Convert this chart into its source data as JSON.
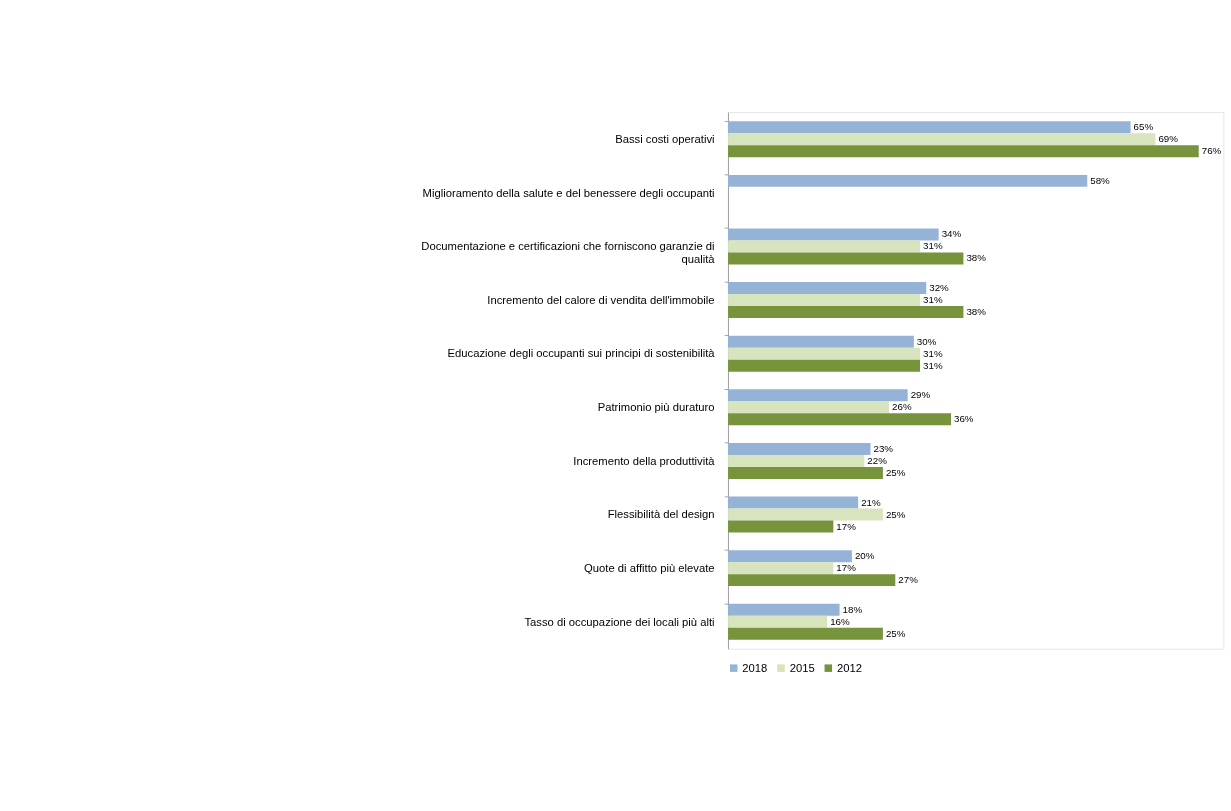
{
  "chart_data": {
    "type": "bar",
    "orientation": "horizontal",
    "legend": "bottom",
    "categories": [
      "Bassi costi operativi",
      "Miglioramento della salute e del benessere degli occupanti",
      "Documentazione e certificazioni che forniscono garanzie di qualità",
      "Incremento del calore di vendita dell'immobile",
      "Educazione degli occupanti sui principi di sostenibilità",
      "Patrimonio più duraturo",
      "Incremento della produttività",
      "Flessibilità del design",
      "Quote di affitto più elevate",
      "Tasso di occupazione dei locali più alti"
    ],
    "series": [
      {
        "name": "2018",
        "color": "#95b3d7",
        "values": [
          65,
          58,
          34,
          32,
          30,
          29,
          23,
          21,
          20,
          18
        ],
        "value_labels": [
          "65%",
          "58%",
          "34%",
          "32%",
          "30%",
          "29%",
          "23%",
          "21%",
          "20%",
          "18%"
        ]
      },
      {
        "name": "2015",
        "color": "#d7e4bd",
        "values": [
          69,
          null,
          31,
          31,
          31,
          26,
          22,
          25,
          17,
          16
        ],
        "value_labels": [
          "69%",
          null,
          "31%",
          "31%",
          "31%",
          "26%",
          "22%",
          "25%",
          "17%",
          "16%"
        ]
      },
      {
        "name": "2012",
        "color": "#77933c",
        "values": [
          76,
          null,
          38,
          38,
          31,
          36,
          25,
          17,
          27,
          25
        ],
        "value_labels": [
          "76%",
          null,
          "38%",
          "38%",
          "31%",
          "36%",
          "25%",
          "17%",
          "27%",
          "25%"
        ]
      }
    ]
  }
}
